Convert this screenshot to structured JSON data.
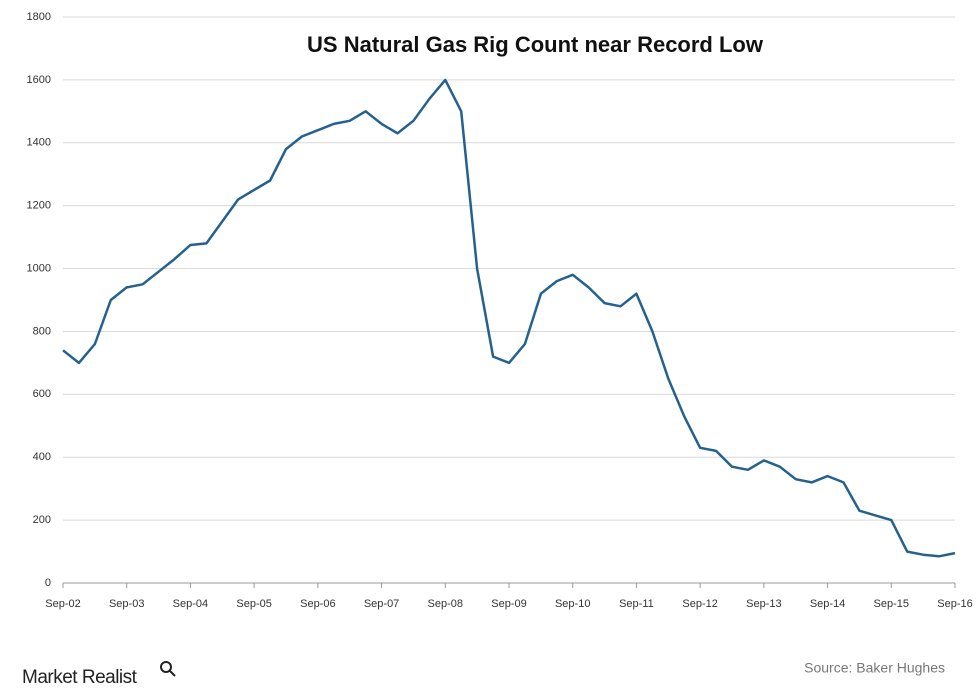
{
  "chart_data": {
    "type": "line",
    "title": "US Natural Gas Rig Count near Record Low",
    "source": "Source: Baker Hughes",
    "brand": "Market Realist",
    "categories": [
      "Sep-02",
      null,
      null,
      null,
      "Sep-03",
      null,
      null,
      null,
      "Sep-04",
      null,
      null,
      null,
      "Sep-05",
      null,
      null,
      null,
      "Sep-06",
      null,
      null,
      null,
      "Sep-07",
      null,
      null,
      null,
      "Sep-08",
      null,
      null,
      null,
      "Sep-09",
      null,
      null,
      null,
      "Sep-10",
      null,
      null,
      null,
      "Sep-11",
      null,
      null,
      null,
      "Sep-12",
      null,
      null,
      null,
      "Sep-13",
      null,
      null,
      null,
      "Sep-14",
      null,
      null,
      null,
      "Sep-15",
      null,
      null,
      null,
      "Sep-16"
    ],
    "series": [
      {
        "name": "Natural gas rig count",
        "color": "#24618e",
        "values": [
          740,
          700,
          760,
          900,
          940,
          950,
          990,
          1030,
          1075,
          1080,
          1150,
          1220,
          1250,
          1280,
          1380,
          1420,
          1440,
          1460,
          1470,
          1500,
          1460,
          1430,
          1470,
          1540,
          1600,
          1500,
          1000,
          720,
          700,
          760,
          920,
          960,
          980,
          940,
          890,
          880,
          920,
          800,
          650,
          530,
          430,
          420,
          370,
          360,
          390,
          370,
          330,
          320,
          340,
          320,
          230,
          215,
          200,
          100,
          90,
          85,
          95
        ]
      }
    ],
    "ylim": [
      0,
      1800
    ],
    "yticks": [
      0,
      200,
      400,
      600,
      800,
      1000,
      1200,
      1400,
      1600,
      1800
    ],
    "grid": true
  }
}
